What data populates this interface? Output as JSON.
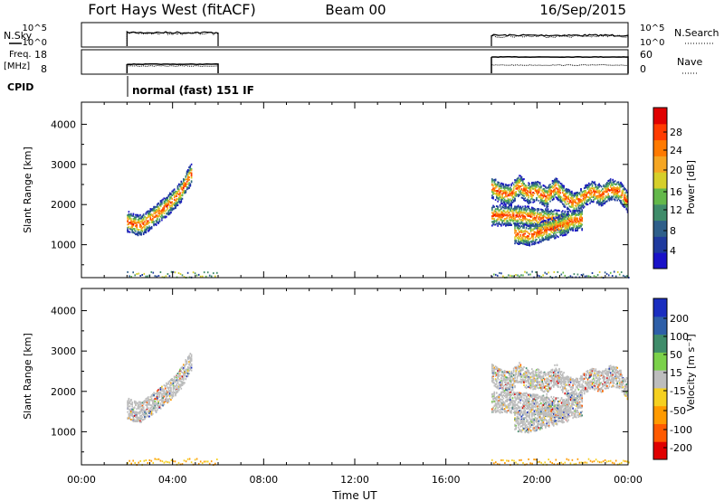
{
  "header": {
    "station": "Fort Hays West (fitACF)",
    "beam": "Beam 00",
    "date": "16/Sep/2015"
  },
  "panels": {
    "nsky_label": "N.Sky",
    "nsearch_label": "N.Search",
    "freq_label_line1": "Freq.",
    "freq_label_line2": "[MHz]",
    "nave_label": "Nave",
    "cpid_label": "CPID",
    "cpid_text": "normal (fast) 151 IF",
    "noise_ticks_left": [
      "10^5",
      "10^0"
    ],
    "noise_ticks_right": [
      "10^5",
      "10^0"
    ],
    "freq_ticks_left": [
      "18",
      "8"
    ],
    "nave_ticks_right": [
      "60",
      "0"
    ]
  },
  "colorbars": {
    "power": {
      "label": "Power [dB]",
      "ticks": [
        "28",
        "24",
        "20",
        "16",
        "12",
        "8",
        "4"
      ],
      "colors": [
        "#1a12c8",
        "#1f3a9e",
        "#2e5f8a",
        "#3f8c6a",
        "#63b84a",
        "#d6cf2a",
        "#f5a623",
        "#ff7a00",
        "#ff3b00",
        "#e00000"
      ]
    },
    "velocity": {
      "label": "Velocity [m s⁻¹]",
      "ticks": [
        "200",
        "100",
        "50",
        "15",
        "-15",
        "-50",
        "-100",
        "-200"
      ],
      "colors": [
        "#1a2ec0",
        "#2e5fa8",
        "#3f8c6a",
        "#7bd14a",
        "#bdbdbd",
        "#f5d020",
        "#ff9a00",
        "#ff5a00",
        "#e00000"
      ]
    }
  },
  "chart_data": [
    {
      "type": "heatmap",
      "name": "power",
      "ylabel": "Slant Range [km]",
      "ylim": [
        180,
        4550
      ],
      "yticks": [
        1000,
        2000,
        3000,
        4000
      ],
      "xlim": [
        0,
        24
      ],
      "xticks": [
        "00:00",
        "04:00",
        "08:00",
        "12:00",
        "16:00",
        "20:00",
        "00:00"
      ],
      "segments": [
        {
          "t_start": 2.0,
          "t_end": 6.0
        },
        {
          "t_start": 18.0,
          "t_end": 24.0
        }
      ],
      "bands": [
        {
          "t": [
            2.0,
            2.3,
            2.6,
            2.9,
            3.2,
            3.5,
            3.8,
            4.1,
            4.4,
            4.6,
            4.8
          ],
          "r": [
            1600,
            1520,
            1500,
            1620,
            1750,
            1880,
            2020,
            2180,
            2380,
            2600,
            2780
          ],
          "dB": 22
        },
        {
          "t": [
            18.0,
            18.4,
            18.8,
            19.2,
            19.6,
            20.0,
            20.4,
            20.8,
            21.2,
            21.6,
            22.0,
            22.4,
            22.8,
            23.2,
            23.6,
            24.0
          ],
          "r": [
            2450,
            2300,
            2250,
            2500,
            2300,
            2350,
            2200,
            2450,
            2200,
            2050,
            2200,
            2350,
            2250,
            2400,
            2350,
            2050
          ],
          "dB": 20
        },
        {
          "t": [
            18.0,
            18.8,
            19.6,
            20.4,
            21.2,
            22.0
          ],
          "r": [
            1750,
            1750,
            1720,
            1650,
            1600,
            1650
          ],
          "dB": 10
        },
        {
          "t": [
            19.0,
            19.6,
            20.2,
            20.8,
            21.4
          ],
          "r": [
            1300,
            1250,
            1350,
            1450,
            1550
          ],
          "dB": 6
        }
      ]
    },
    {
      "type": "heatmap",
      "name": "velocity",
      "ylabel": "Slant Range [km]",
      "xlabel": "Time UT",
      "ylim": [
        180,
        4550
      ],
      "yticks": [
        1000,
        2000,
        3000,
        4000
      ],
      "xlim": [
        0,
        24
      ],
      "xticks": [
        "00:00",
        "04:00",
        "08:00",
        "12:00",
        "16:00",
        "20:00",
        "00:00"
      ],
      "segments": [
        {
          "t_start": 2.0,
          "t_end": 6.0
        },
        {
          "t_start": 18.0,
          "t_end": 24.0
        }
      ],
      "bands": [
        {
          "t": [
            2.0,
            2.3,
            2.6,
            2.9,
            3.2,
            3.5,
            3.8,
            4.1,
            4.4,
            4.6,
            4.8
          ],
          "r": [
            1600,
            1520,
            1500,
            1620,
            1750,
            1880,
            2020,
            2180,
            2380,
            2600,
            2780
          ],
          "v": 0
        },
        {
          "t": [
            18.0,
            18.4,
            18.8,
            19.2,
            19.6,
            20.0,
            20.4,
            20.8,
            21.2,
            21.6,
            22.0,
            22.4,
            22.8,
            23.2,
            23.6,
            24.0
          ],
          "r": [
            2450,
            2300,
            2250,
            2500,
            2300,
            2350,
            2200,
            2450,
            2200,
            2050,
            2200,
            2350,
            2250,
            2400,
            2350,
            2050
          ],
          "v": 0
        },
        {
          "t": [
            18.0,
            18.8,
            19.6,
            20.4,
            21.2,
            22.0
          ],
          "r": [
            1750,
            1750,
            1720,
            1650,
            1600,
            1650
          ],
          "v": -10
        },
        {
          "t": [
            19.0,
            19.6,
            20.2,
            20.8,
            21.4
          ],
          "r": [
            1300,
            1250,
            1350,
            1450,
            1550
          ],
          "v": -10
        }
      ]
    }
  ]
}
